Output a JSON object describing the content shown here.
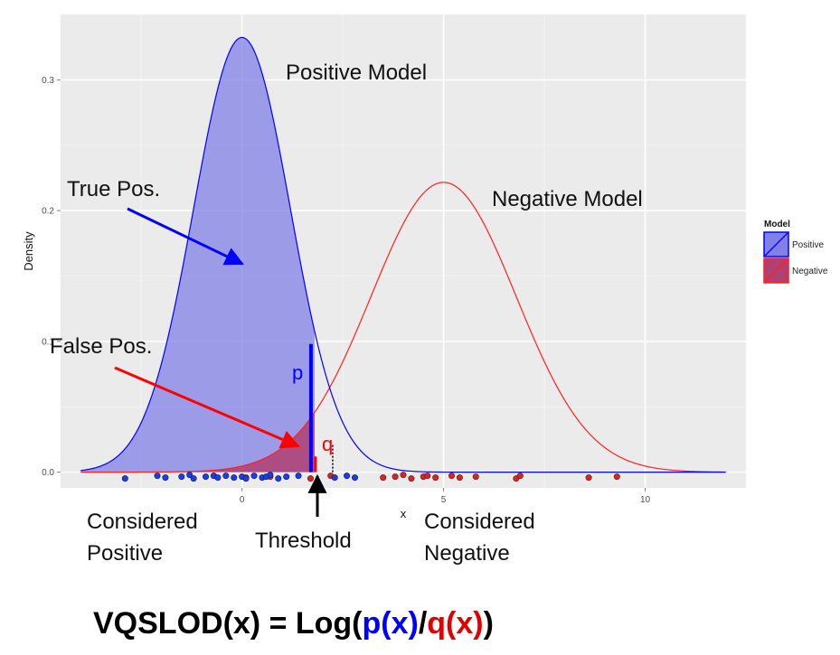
{
  "chart_data": {
    "type": "area",
    "xlabel": "x",
    "ylabel": "Density",
    "xlim": [
      -4.5,
      12.5
    ],
    "ylim": [
      -0.012,
      0.35
    ],
    "x_ticks": [
      {
        "value": 0,
        "label": "0"
      },
      {
        "value": 5,
        "label": "5"
      },
      {
        "value": 10,
        "label": "10"
      }
    ],
    "y_ticks": [
      {
        "value": 0.0,
        "label": "0.0"
      },
      {
        "value": 0.1,
        "label": "0.1"
      },
      {
        "value": 0.2,
        "label": "0.2"
      },
      {
        "value": 0.3,
        "label": "0.3"
      }
    ],
    "grid": true,
    "series": [
      {
        "name": "Positive",
        "distribution": "normal",
        "mean": 0,
        "sd": 1.2,
        "x_range": [
          -4,
          12
        ],
        "color": "#0000ff",
        "fill": "#8080e6"
      },
      {
        "name": "Negative",
        "distribution": "normal",
        "mean": 5,
        "sd": 1.8,
        "x_range": [
          -4,
          12
        ],
        "color": "#ff2020",
        "fill": "#b04070"
      }
    ],
    "threshold": 1.8,
    "positive_points": [
      -2.9,
      -2.1,
      -1.9,
      -1.5,
      -1.3,
      -1.2,
      -0.9,
      -0.7,
      -0.6,
      -0.4,
      -0.2,
      0.0,
      0.1,
      0.3,
      0.5,
      0.6,
      0.7,
      0.9,
      1.1,
      1.4,
      2.3,
      2.6,
      2.8
    ],
    "negative_points": [
      -0.7,
      0.1,
      0.7,
      1.7,
      2.2,
      3.5,
      3.8,
      4.0,
      4.2,
      4.5,
      4.6,
      4.8,
      5.2,
      5.4,
      5.8,
      6.8,
      6.9,
      8.6,
      9.3
    ],
    "legend": {
      "title": "Model",
      "position": "right",
      "entries": [
        {
          "label": "Positive",
          "color": "#0000ff",
          "fill": "#8080e6"
        },
        {
          "label": "Negative",
          "color": "#ff2020",
          "fill": "#b04070"
        }
      ]
    },
    "annotations": {
      "positive_model": "Positive Model",
      "negative_model": "Negative Model",
      "true_pos": "True Pos.",
      "false_pos": "False Pos.",
      "p_label": "p",
      "q_label": "q",
      "considered_positive_1": "Considered",
      "considered_positive_2": "Positive",
      "threshold_label": "Threshold",
      "considered_negative_1": "Considered",
      "considered_negative_2": "Negative"
    }
  },
  "formula": {
    "prefix": "VQSLOD(x) = Log(",
    "p": "p(x)",
    "slash": "/",
    "q": "q(x)",
    "suffix": ")"
  },
  "colors": {
    "panel_bg": "#ebebeb",
    "grid": "#ffffff",
    "positive": "#0000ff",
    "negative": "#ff2020",
    "arrow_black": "#000000"
  }
}
